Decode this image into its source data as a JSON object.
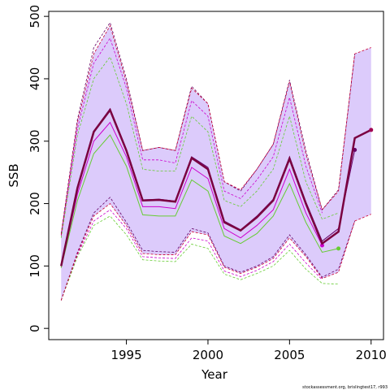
{
  "chart_data": {
    "type": "line",
    "xlabel": "Year",
    "ylabel": "SSB",
    "footnote": "stockassessment.org, brislingtest17, r993",
    "x": [
      1991,
      1992,
      1993,
      1994,
      1995,
      1996,
      1997,
      1998,
      1999,
      2000,
      2001,
      2002,
      2003,
      2004,
      2005,
      2006,
      2007,
      2008,
      2009,
      2010
    ],
    "xlim": [
      1990.24,
      2010.76
    ],
    "xticks": [
      1995,
      2000,
      2005,
      2010
    ],
    "ylim": [
      -18,
      508
    ],
    "yticks": [
      0,
      100,
      200,
      300,
      400,
      500
    ],
    "band_color": "#dccbfb",
    "bound_color": "#cc0033",
    "series": [
      {
        "color": "#7a0040",
        "width": 2.5,
        "values": [
          100,
          225,
          315,
          350,
          285,
          205,
          206,
          203,
          273,
          255,
          170,
          157,
          178,
          205,
          272,
          200,
          136,
          155,
          305,
          318
        ],
        "lower": [
          45,
          120,
          180,
          200,
          165,
          120,
          118,
          118,
          155,
          150,
          98,
          88,
          98,
          112,
          145,
          115,
          80,
          90,
          172,
          183
        ],
        "upper": [
          150,
          330,
          440,
          485,
          395,
          285,
          290,
          285,
          385,
          360,
          235,
          222,
          255,
          295,
          395,
          280,
          190,
          220,
          440,
          450
        ]
      },
      {
        "color": "#660066",
        "width": 1,
        "values": [
          100,
          225,
          316,
          352,
          287,
          206,
          207,
          204,
          275,
          258,
          172,
          158,
          180,
          207,
          275,
          203,
          140,
          160,
          286,
          null
        ],
        "lower": [
          45,
          122,
          185,
          210,
          170,
          125,
          123,
          122,
          160,
          153,
          100,
          90,
          100,
          115,
          150,
          118,
          82,
          95,
          172,
          null
        ],
        "upper": [
          152,
          335,
          450,
          490,
          400,
          285,
          290,
          285,
          388,
          360,
          235,
          220,
          255,
          295,
          398,
          285,
          190,
          222,
          440,
          null
        ]
      },
      {
        "color": "#66cc33",
        "width": 1,
        "values": [
          97,
          205,
          280,
          310,
          260,
          182,
          180,
          180,
          238,
          220,
          148,
          136,
          152,
          180,
          232,
          170,
          122,
          128,
          null,
          null
        ],
        "lower": [
          45,
          115,
          165,
          180,
          150,
          110,
          108,
          107,
          135,
          128,
          87,
          78,
          88,
          100,
          125,
          95,
          72,
          71,
          null,
          null
        ],
        "upper": [
          145,
          310,
          400,
          435,
          360,
          255,
          252,
          252,
          340,
          315,
          205,
          195,
          220,
          255,
          340,
          235,
          175,
          185,
          null,
          null
        ]
      },
      {
        "color": "#cc00cc",
        "width": 1,
        "values": [
          98,
          215,
          300,
          330,
          275,
          195,
          195,
          192,
          258,
          240,
          160,
          145,
          165,
          190,
          255,
          185,
          133,
          null,
          null,
          null
        ],
        "lower": [
          45,
          118,
          172,
          190,
          160,
          115,
          113,
          112,
          145,
          140,
          92,
          83,
          93,
          107,
          135,
          105,
          78,
          null,
          null,
          null
        ],
        "upper": [
          148,
          320,
          425,
          465,
          385,
          270,
          270,
          265,
          365,
          340,
          220,
          208,
          238,
          275,
          370,
          260,
          185,
          null,
          null,
          null
        ]
      }
    ]
  }
}
